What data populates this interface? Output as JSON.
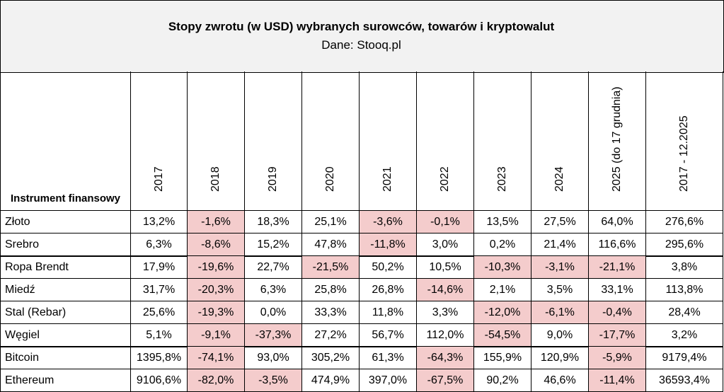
{
  "title": "Stopy zwrotu (w USD) wybranych surowców, towarów i kryptowalut",
  "subtitle": "Dane: Stooq.pl",
  "table": {
    "header": [
      "Instrument finansowy",
      "2017",
      "2018",
      "2019",
      "2020",
      "2021",
      "2022",
      "2023",
      "2024",
      "2025 (do 17 grudnia)",
      "2017 - 12.2025"
    ],
    "groups": [
      [
        [
          "Złoto",
          "13,2%",
          "-1,6%",
          "18,3%",
          "25,1%",
          "-3,6%",
          "-0,1%",
          "13,5%",
          "27,5%",
          "64,0%",
          "276,6%"
        ],
        [
          "Srebro",
          "6,3%",
          "-8,6%",
          "15,2%",
          "47,8%",
          "-11,8%",
          "3,0%",
          "0,2%",
          "21,4%",
          "116,6%",
          "295,6%"
        ]
      ],
      [
        [
          "Ropa Brendt",
          "17,9%",
          "-19,6%",
          "22,7%",
          "-21,5%",
          "50,2%",
          "10,5%",
          "-10,3%",
          "-3,1%",
          "-21,1%",
          "3,8%"
        ],
        [
          "Miedź",
          "31,7%",
          "-20,3%",
          "6,3%",
          "25,8%",
          "26,8%",
          "-14,6%",
          "2,1%",
          "3,5%",
          "33,1%",
          "113,8%"
        ],
        [
          "Stal (Rebar)",
          "25,6%",
          "-19,3%",
          "0,0%",
          "33,3%",
          "11,8%",
          "3,3%",
          "-12,0%",
          "-6,1%",
          "-0,4%",
          "28,4%"
        ],
        [
          "Węgiel",
          "5,1%",
          "-9,1%",
          "-37,3%",
          "27,2%",
          "56,7%",
          "112,0%",
          "-54,5%",
          "9,0%",
          "-17,7%",
          "3,2%"
        ]
      ],
      [
        [
          "Bitcoin",
          "1395,8%",
          "-74,1%",
          "93,0%",
          "305,2%",
          "61,3%",
          "-64,3%",
          "155,9%",
          "120,9%",
          "-5,9%",
          "9179,4%"
        ],
        [
          "Ethereum",
          "9106,6%",
          "-82,0%",
          "-3,5%",
          "474,9%",
          "397,0%",
          "-67,5%",
          "90,2%",
          "46,6%",
          "-11,4%",
          "36593,4%"
        ]
      ]
    ]
  }
}
